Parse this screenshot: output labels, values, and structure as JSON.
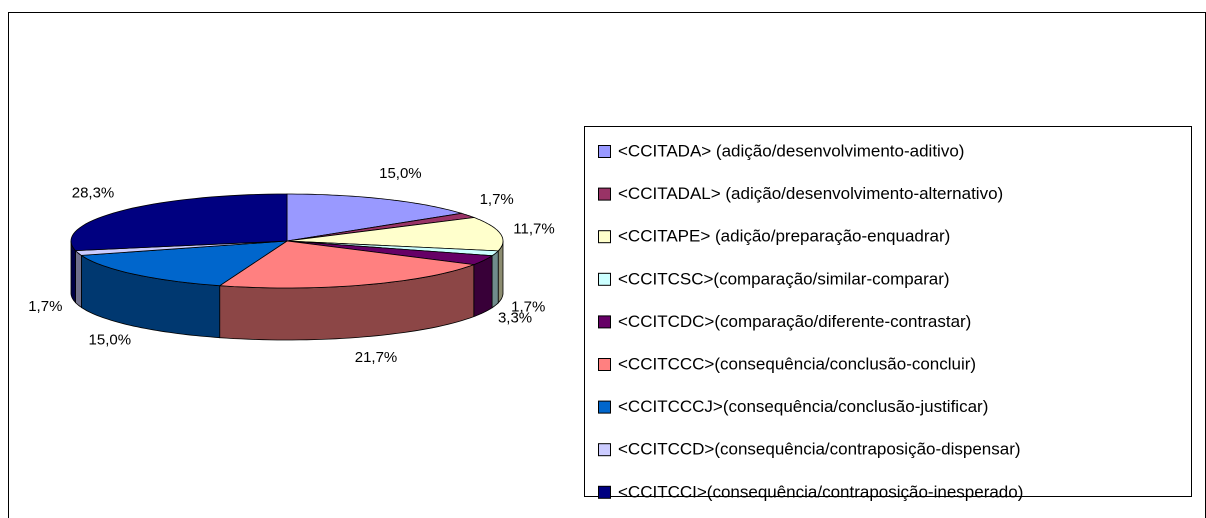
{
  "chart_data": {
    "type": "pie3d",
    "categories": [
      "<CCITADA> (adição/desenvolvimento-aditivo)",
      "<CCITADAL> (adição/desenvolvimento-alternativo)",
      "<CCITAPE> (adição/preparação-enquadrar)",
      "<CCITCSC>(comparação/similar-comparar)",
      "<CCITCDC>(comparação/diferente-contrastar)",
      "<CCITCCC>(consequência/conclusão-concluir)",
      "<CCITCCCJ>(consequência/conclusão-justificar)",
      "<CCITCCD>(consequência/contraposição-dispensar)",
      "<CCITCCI>(consequência/contraposição-inesperado)"
    ],
    "values": [
      15.0,
      1.7,
      11.7,
      1.7,
      3.3,
      21.7,
      15.0,
      1.7,
      28.3
    ],
    "value_labels": [
      "15,0%",
      "1,7%",
      "11,7%",
      "1,7%",
      "3,3%",
      "21,7%",
      "15,0%",
      "1,7%",
      "28,3%"
    ],
    "colors": [
      "#9999ff",
      "#993366",
      "#ffffcc",
      "#ccffff",
      "#660066",
      "#ff8080",
      "#0066cc",
      "#ccccff",
      "#000080"
    ],
    "legend": "right"
  }
}
